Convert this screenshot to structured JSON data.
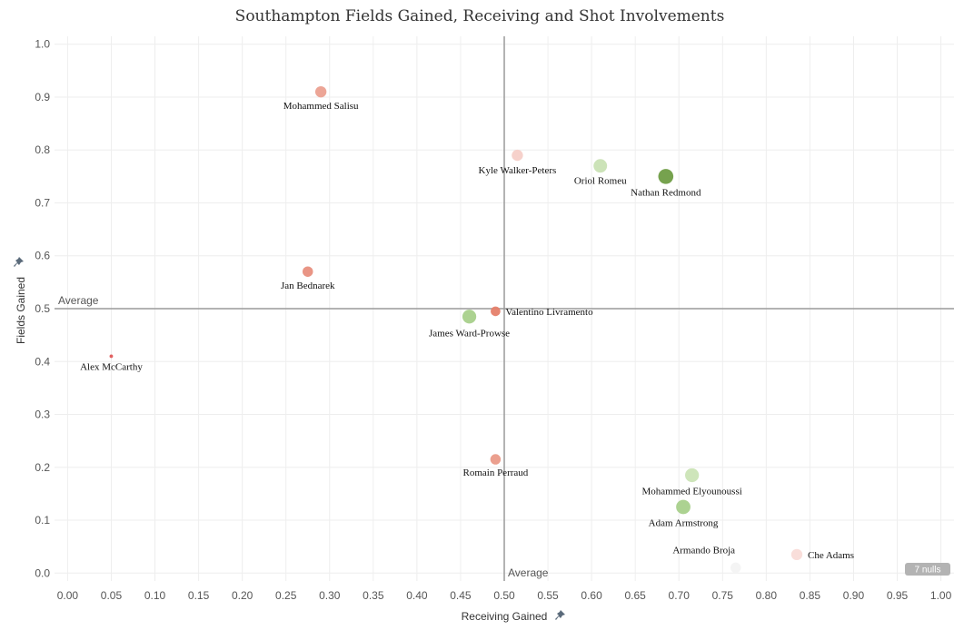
{
  "chart_data": {
    "type": "scatter",
    "title": "Southampton Fields Gained, Receiving and Shot Involvements",
    "xlabel": "Receiving Gained",
    "ylabel": "Fields Gained",
    "xlim": [
      -0.015,
      1.015
    ],
    "ylim": [
      -0.015,
      1.015
    ],
    "xticks": [
      "0.00",
      "0.05",
      "0.10",
      "0.15",
      "0.20",
      "0.25",
      "0.30",
      "0.35",
      "0.40",
      "0.45",
      "0.50",
      "0.55",
      "0.60",
      "0.65",
      "0.70",
      "0.75",
      "0.80",
      "0.85",
      "0.90",
      "0.95",
      "1.00"
    ],
    "yticks": [
      "0.0",
      "0.1",
      "0.2",
      "0.3",
      "0.4",
      "0.5",
      "0.6",
      "0.7",
      "0.8",
      "0.9",
      "1.0"
    ],
    "reference_lines": {
      "x": {
        "value": 0.5,
        "label": "Average"
      },
      "y": {
        "value": 0.5,
        "label": "Average"
      }
    },
    "nulls_badge": "7 nulls",
    "points": [
      {
        "name": "Mohammed Salisu",
        "x": 0.29,
        "y": 0.91,
        "color": "#eba090",
        "size": 0.55
      },
      {
        "name": "Kyle Walker-Peters",
        "x": 0.515,
        "y": 0.79,
        "color": "#f6cfc8",
        "size": 0.55
      },
      {
        "name": "Oriol Romeu",
        "x": 0.61,
        "y": 0.77,
        "color": "#c9e2b4",
        "size": 0.7
      },
      {
        "name": "Nathan Redmond",
        "x": 0.685,
        "y": 0.75,
        "color": "#6f9d45",
        "size": 0.8
      },
      {
        "name": "Jan Bednarek",
        "x": 0.275,
        "y": 0.57,
        "color": "#e88f7e",
        "size": 0.5
      },
      {
        "name": "Valentino Livramento",
        "x": 0.49,
        "y": 0.495,
        "color": "#e57f6a",
        "size": 0.45
      },
      {
        "name": "James Ward-Prowse",
        "x": 0.46,
        "y": 0.485,
        "color": "#a8d08b",
        "size": 0.72
      },
      {
        "name": "Alex McCarthy",
        "x": 0.05,
        "y": 0.41,
        "color": "#e05858",
        "size": 0.05
      },
      {
        "name": "Romain Perraud",
        "x": 0.49,
        "y": 0.215,
        "color": "#ea9a88",
        "size": 0.5
      },
      {
        "name": "Mohammed Elyounoussi",
        "x": 0.715,
        "y": 0.185,
        "color": "#cbe4b6",
        "size": 0.72
      },
      {
        "name": "Adam Armstrong",
        "x": 0.705,
        "y": 0.125,
        "color": "#a8d08b",
        "size": 0.75
      },
      {
        "name": "Armando Broja",
        "x": 0.765,
        "y": 0.01,
        "color": "#f3f3f3",
        "size": 0.5
      },
      {
        "name": "Che Adams",
        "x": 0.835,
        "y": 0.035,
        "color": "#f9dcd8",
        "size": 0.55
      }
    ]
  }
}
